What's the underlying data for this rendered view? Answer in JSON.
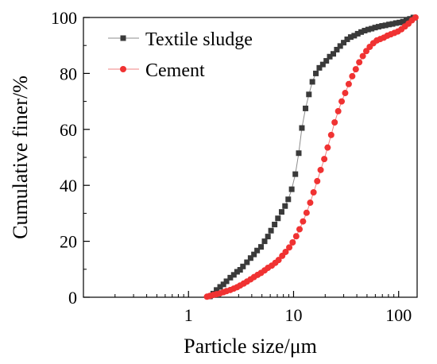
{
  "chart_data": {
    "type": "scatter",
    "xscale": "log",
    "xlabel": "Particle size/μm",
    "ylabel": "Cumulative finer/%",
    "xlim": [
      0.1,
      150
    ],
    "ylim": [
      0,
      100
    ],
    "xticks": [
      1,
      10,
      100
    ],
    "xtick_labels": [
      "1",
      "10",
      "100"
    ],
    "yticks": [
      0,
      20,
      40,
      60,
      80,
      100
    ],
    "ytick_labels": [
      "0",
      "20",
      "40",
      "60",
      "80",
      "100"
    ],
    "grid": false,
    "legend_position": "top-left",
    "series": [
      {
        "name": "Textile sludge",
        "marker": "square",
        "color": "#3a3a3a",
        "line_color": "#8c8c8c",
        "x": [
          1.6,
          1.72,
          1.85,
          2.0,
          2.15,
          2.3,
          2.5,
          2.7,
          2.9,
          3.1,
          3.3,
          3.6,
          3.9,
          4.2,
          4.5,
          4.9,
          5.3,
          5.7,
          6.1,
          6.6,
          7.1,
          7.7,
          8.3,
          8.9,
          9.6,
          10.4,
          11.2,
          12.0,
          13.0,
          14.0,
          15.1,
          16.3,
          17.6,
          19.0,
          20.5,
          22.1,
          23.9,
          25.8,
          27.8,
          30.0,
          32.4,
          35.0,
          37.8,
          40.8,
          44.0,
          47.5,
          51.3,
          55.3,
          59.7,
          64.4,
          69.5,
          75.0,
          81.0,
          87.4,
          94.3,
          101.8,
          109.9,
          118.6,
          128.0,
          138.1
        ],
        "y": [
          0.3,
          1.3,
          2.6,
          3.7,
          4.6,
          5.7,
          7.0,
          8.0,
          9.1,
          9.8,
          11.0,
          12.5,
          14.0,
          15.3,
          16.7,
          18.0,
          20.0,
          21.7,
          23.8,
          26.0,
          28.2,
          30.5,
          32.6,
          35.0,
          38.6,
          44.0,
          51.5,
          60.5,
          67.5,
          72.5,
          77.0,
          80.0,
          82.0,
          83.2,
          84.5,
          86.0,
          87.0,
          88.5,
          89.8,
          91.0,
          92.2,
          93.0,
          93.5,
          94.2,
          94.8,
          95.3,
          95.7,
          96.0,
          96.4,
          96.7,
          97.0,
          97.2,
          97.5,
          97.7,
          98.0,
          98.2,
          98.5,
          99.0,
          99.5,
          100.0
        ]
      },
      {
        "name": "Cement",
        "marker": "circle",
        "color": "#f03232",
        "line_color": "#f08080",
        "x": [
          1.5,
          1.6,
          1.72,
          1.85,
          2.0,
          2.15,
          2.3,
          2.5,
          2.7,
          2.9,
          3.1,
          3.35,
          3.6,
          3.9,
          4.2,
          4.55,
          4.9,
          5.3,
          5.7,
          6.2,
          6.7,
          7.2,
          7.8,
          8.4,
          9.1,
          9.8,
          10.6,
          11.4,
          12.3,
          13.3,
          14.4,
          15.5,
          16.8,
          18.1,
          19.6,
          21.1,
          22.8,
          24.6,
          26.6,
          28.7,
          31.0,
          33.5,
          36.2,
          39.1,
          42.2,
          45.6,
          49.2,
          53.1,
          57.4,
          62.0,
          66.9,
          72.3,
          78.1,
          84.3,
          91.1,
          98.4,
          106.3,
          114.8,
          124.0,
          133.9,
          144.6
        ],
        "y": [
          0.2,
          0.5,
          0.8,
          1.1,
          1.4,
          1.8,
          2.2,
          2.6,
          3.1,
          3.6,
          4.2,
          4.9,
          5.6,
          6.4,
          7.2,
          8.0,
          8.7,
          9.6,
          10.5,
          11.3,
          12.3,
          13.3,
          14.8,
          16.2,
          17.8,
          19.6,
          21.8,
          24.3,
          27.1,
          30.2,
          33.8,
          37.5,
          41.5,
          45.5,
          49.4,
          53.5,
          58.0,
          62.5,
          66.5,
          70.0,
          73.0,
          76.2,
          79.0,
          81.5,
          84.0,
          86.2,
          88.0,
          89.5,
          90.8,
          91.8,
          92.3,
          92.8,
          93.5,
          94.0,
          94.5,
          95.0,
          95.8,
          96.8,
          97.8,
          99.0,
          100.0
        ]
      }
    ]
  }
}
